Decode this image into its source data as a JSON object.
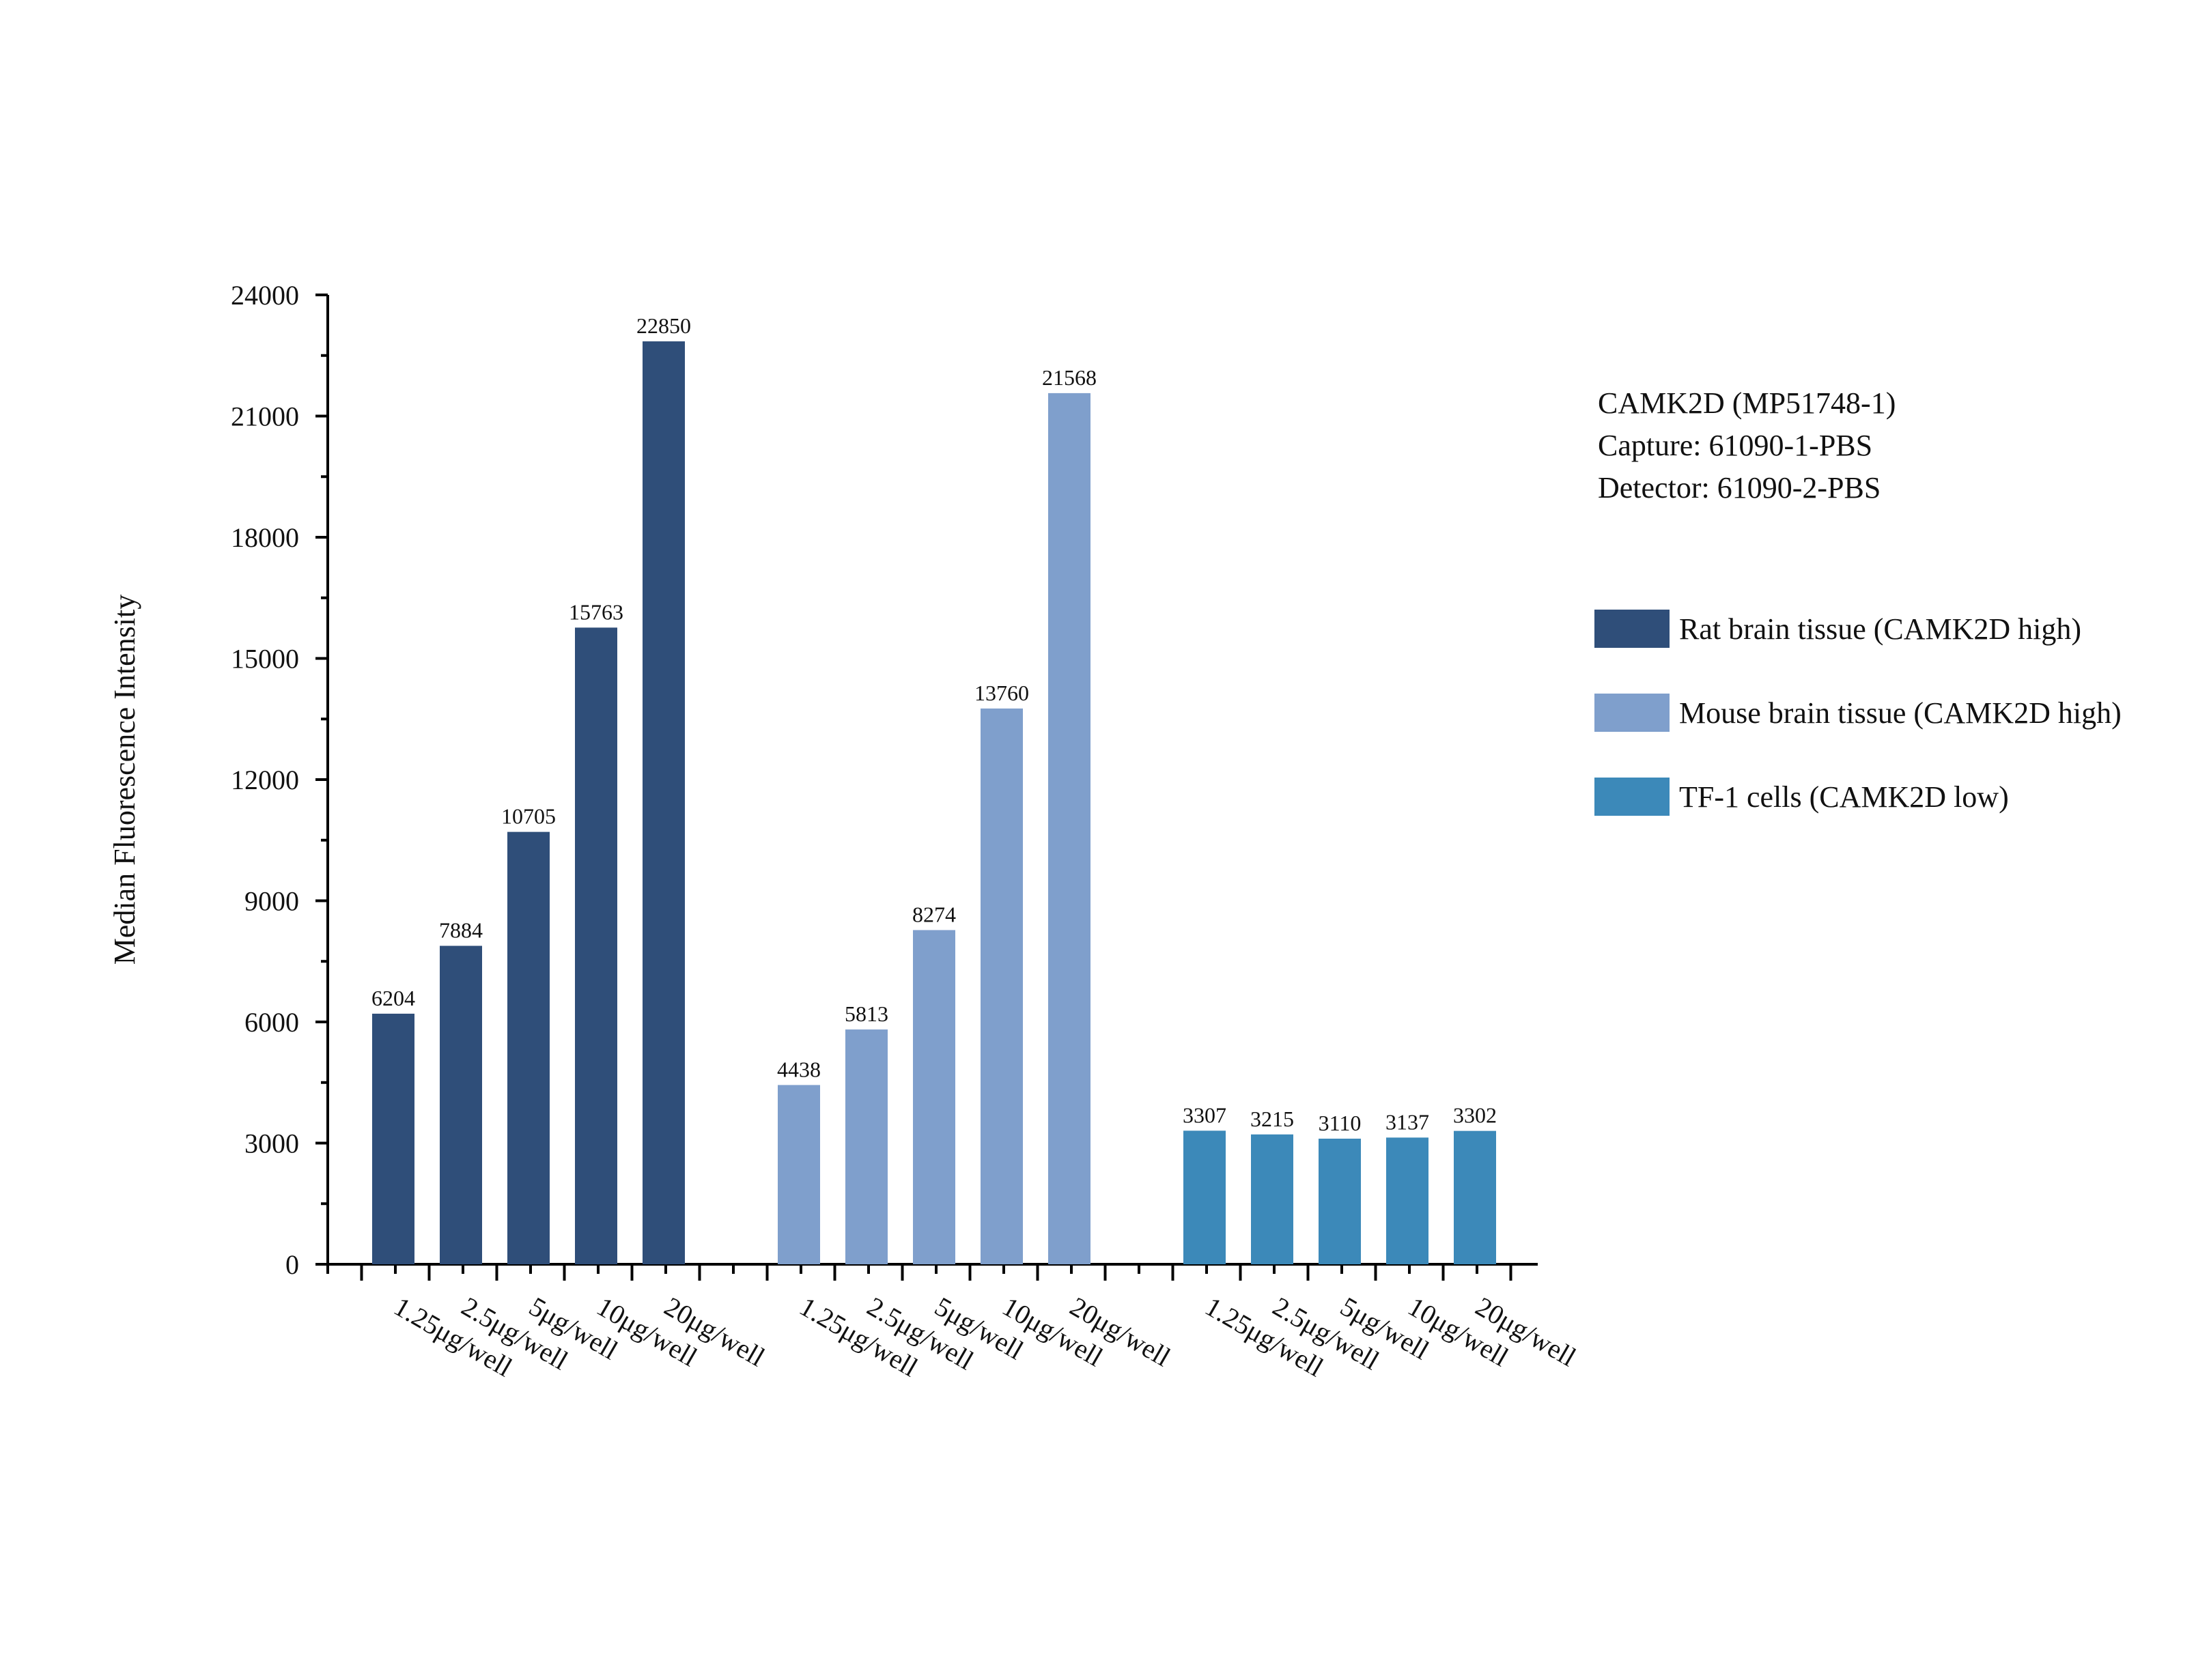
{
  "chart_data": {
    "type": "bar",
    "ylabel": "Median Fluorescence Intensity",
    "xlabel": "",
    "ylim": [
      0,
      24000
    ],
    "yticks": [
      0,
      3000,
      6000,
      9000,
      12000,
      15000,
      18000,
      21000,
      24000
    ],
    "categories": [
      "1.25μg/well",
      "2.5μg/well",
      "5μg/well",
      "10μg/well",
      "20μg/well"
    ],
    "legend_position": "right",
    "grid": false,
    "series": [
      {
        "name": "Rat brain tissue (CAMK2D high)",
        "color": "#2f4e79",
        "values": [
          6204,
          7884,
          10705,
          15763,
          22850
        ]
      },
      {
        "name": "Mouse brain tissue (CAMK2D high)",
        "color": "#7f9fcc",
        "values": [
          4438,
          5813,
          8274,
          13760,
          21568
        ]
      },
      {
        "name": "TF-1 cells (CAMK2D low)",
        "color": "#3c89b9",
        "values": [
          3307,
          3215,
          3110,
          3137,
          3302
        ]
      }
    ],
    "annotations": [
      "CAMK2D (MP51748-1)",
      "Capture: 61090-1-PBS",
      "Detector: 61090-2-PBS"
    ]
  }
}
